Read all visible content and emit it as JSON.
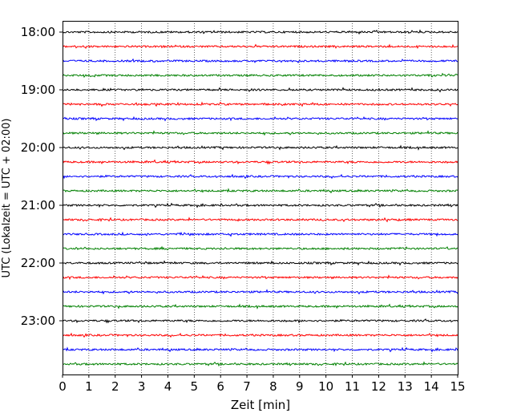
{
  "chart_data": {
    "type": "line",
    "title": "",
    "xlabel": "Zeit  [min]",
    "ylabel": "UTC (Lokalzeit = UTC + 02:00)",
    "xlim": [
      0,
      15
    ],
    "x_ticks": [
      "0",
      "1",
      "2",
      "3",
      "4",
      "5",
      "6",
      "7",
      "8",
      "9",
      "10",
      "11",
      "12",
      "13",
      "14",
      "15"
    ],
    "y_ticks": [
      {
        "label": "18:00",
        "trace": 0
      },
      {
        "label": "19:00",
        "trace": 4
      },
      {
        "label": "20:00",
        "trace": 8
      },
      {
        "label": "21:00",
        "trace": 12
      },
      {
        "label": "22:00",
        "trace": 16
      },
      {
        "label": "23:00",
        "trace": 20
      }
    ],
    "trace_interval_min": 15,
    "grid": "vertical dotted",
    "trace_colors": [
      "#000000",
      "#ff0000",
      "#0000ff",
      "#008000"
    ],
    "traces": [
      {
        "start": "18:00"
      },
      {
        "start": "18:15"
      },
      {
        "start": "18:30"
      },
      {
        "start": "18:45"
      },
      {
        "start": "19:00"
      },
      {
        "start": "19:15"
      },
      {
        "start": "19:30"
      },
      {
        "start": "19:45"
      },
      {
        "start": "20:00"
      },
      {
        "start": "20:15"
      },
      {
        "start": "20:30"
      },
      {
        "start": "20:45"
      },
      {
        "start": "21:00"
      },
      {
        "start": "21:15"
      },
      {
        "start": "21:30"
      },
      {
        "start": "21:45"
      },
      {
        "start": "22:00"
      },
      {
        "start": "22:15"
      },
      {
        "start": "22:30"
      },
      {
        "start": "22:45"
      },
      {
        "start": "23:00"
      },
      {
        "start": "23:15"
      },
      {
        "start": "23:30"
      },
      {
        "start": "23:45"
      }
    ]
  }
}
